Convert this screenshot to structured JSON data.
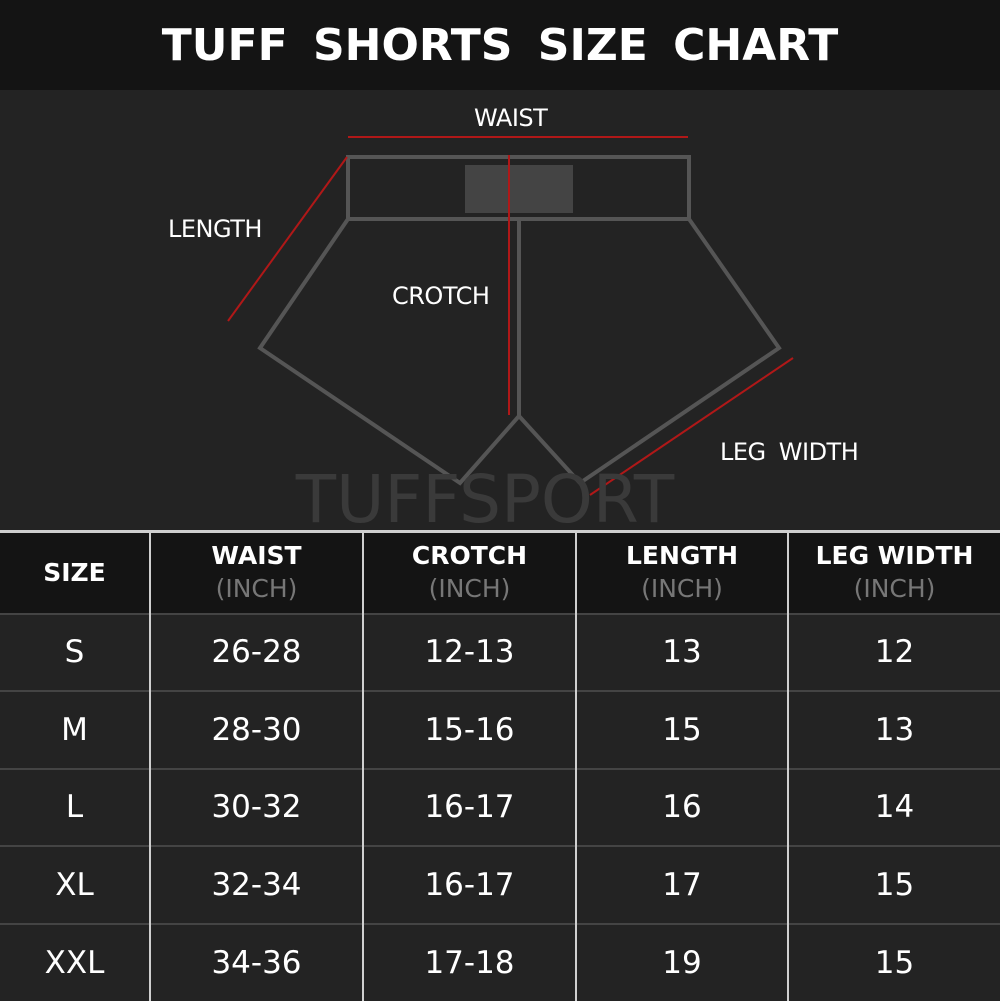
{
  "title": "TUFF SHORTS SIZE CHART",
  "diagram": {
    "waist": "WAIST",
    "length": "LENGTH",
    "crotch": "CROTCH",
    "leg_width": "LEG WIDTH",
    "accent_color": "#b01818",
    "outline_color": "#555555"
  },
  "watermark": "TUFFSPORT",
  "table": {
    "headers": [
      {
        "label": "SIZE",
        "unit": ""
      },
      {
        "label": "WAIST",
        "unit": "(INCH)"
      },
      {
        "label": "CROTCH",
        "unit": "(INCH)"
      },
      {
        "label": "LENGTH",
        "unit": "(INCH)"
      },
      {
        "label": "LEG WIDTH",
        "unit": "(INCH)"
      }
    ],
    "rows": [
      [
        "S",
        "26-28",
        "12-13",
        "13",
        "12"
      ],
      [
        "M",
        "28-30",
        "15-16",
        "15",
        "13"
      ],
      [
        "L",
        "30-32",
        "16-17",
        "16",
        "14"
      ],
      [
        "XL",
        "32-34",
        "16-17",
        "17",
        "15"
      ],
      [
        "XXL",
        "34-36",
        "17-18",
        "19",
        "15"
      ]
    ]
  }
}
